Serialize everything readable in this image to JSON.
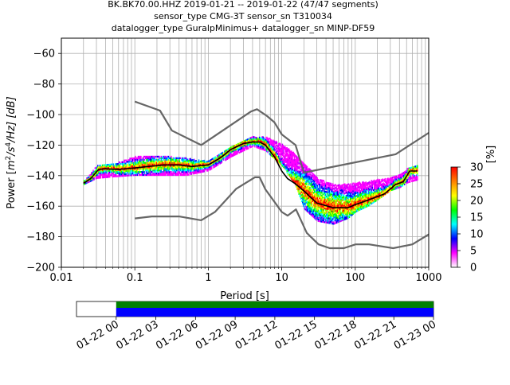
{
  "title_lines": [
    "BK.BK70.00.HHZ   2019-01-21 -- 2019-01-22  (47/47 segments)",
    "sensor_type CMG-3T sensor_sn T310034",
    "datalogger_type GuralpMinimus+ datalogger_sn MINP-DF59"
  ],
  "colorbar": {
    "label": "[%]",
    "ticks": [
      "0",
      "5",
      "10",
      "15",
      "20",
      "25",
      "30"
    ],
    "min": 0,
    "max": 30,
    "stops": [
      "#ffffff",
      "#ff00ff",
      "#0000ff",
      "#00ffff",
      "#00ff00",
      "#ffff00",
      "#ff8000",
      "#ff0000"
    ]
  },
  "timeline": {
    "ticks": [
      "01-22 00",
      "01-22 03",
      "01-22 06",
      "01-22 09",
      "01-22 12",
      "01-22 15",
      "01-22 18",
      "01-22 21",
      "01-23 00"
    ],
    "range_hours": [
      -3,
      24
    ],
    "coverage_hours": [
      0,
      24
    ],
    "colors": {
      "top": "#008000",
      "bottom": "#0000ff"
    }
  },
  "chart_data": {
    "type": "line",
    "title": "BK.BK70.00.HHZ   2019-01-21 -- 2019-01-22  (47/47 segments)",
    "xlabel": "Period [s]",
    "ylabel": "Power [m²/s⁴/Hz] [dB]",
    "ylabel_parts": {
      "pre": "Power [",
      "m": "m",
      "sup2": "2",
      "slash_s": "/s",
      "sup4": "4",
      "rest": "/Hz] [dB]"
    },
    "xscale": "log",
    "xlim": [
      0.01,
      1000
    ],
    "ylim": [
      -200,
      -50
    ],
    "xticks": [
      0.01,
      0.1,
      1,
      10,
      100,
      1000
    ],
    "xtick_labels": [
      "0.01",
      "0.1",
      "1",
      "10",
      "100",
      "1000"
    ],
    "yticks": [
      -200,
      -180,
      -160,
      -140,
      -120,
      -100,
      -80,
      -60
    ],
    "ytick_labels": [
      "−200",
      "−180",
      "−160",
      "−140",
      "−120",
      "−100",
      "−80",
      "−60"
    ],
    "grid": true,
    "series": [
      {
        "role": "noise-model-high",
        "color": "#666666",
        "x": [
          0.1,
          0.22,
          0.32,
          0.8,
          3.8,
          4.6,
          6.3,
          7.9,
          10,
          15.4,
          20,
          354.8,
          1000
        ],
        "y": [
          -91.5,
          -97.4,
          -110.5,
          -120,
          -98,
          -96.5,
          -101,
          -105,
          -113,
          -120,
          -138,
          -126,
          -112
        ]
      },
      {
        "role": "noise-model-low",
        "color": "#666666",
        "x": [
          0.1,
          0.17,
          0.4,
          0.8,
          1.24,
          2.4,
          4.3,
          5,
          6,
          10,
          12,
          15.6,
          21.9,
          31.6,
          45,
          70,
          101,
          154,
          328,
          600,
          1000
        ],
        "y": [
          -168,
          -166.7,
          -166.7,
          -169.2,
          -163.7,
          -148.6,
          -141.1,
          -141.1,
          -149,
          -163.8,
          -166.2,
          -162.1,
          -177.5,
          -185,
          -187.5,
          -187.5,
          -185,
          -185,
          -187.5,
          -185,
          -178.5
        ]
      },
      {
        "role": "mean",
        "color": "#000000",
        "x": [
          0.02,
          0.025,
          0.032,
          0.04,
          0.06,
          0.1,
          0.15,
          0.25,
          0.4,
          0.6,
          1,
          1.5,
          2,
          3,
          4,
          5,
          6,
          8,
          10,
          12,
          15,
          20,
          30,
          50,
          80,
          100,
          150,
          250,
          350,
          450,
          550,
          700
        ],
        "y": [
          -145,
          -142,
          -136,
          -135.5,
          -136,
          -135,
          -134,
          -133,
          -133,
          -134,
          -133,
          -128,
          -123,
          -119,
          -118,
          -118,
          -120,
          -128,
          -137,
          -142,
          -145,
          -150,
          -158,
          -161,
          -161,
          -159,
          -156,
          -152,
          -146,
          -144,
          -137,
          -137
        ]
      }
    ],
    "density_band": {
      "cmap": "PQLX percentage 0–30",
      "x": [
        0.02,
        0.03,
        0.05,
        0.1,
        0.2,
        0.5,
        1,
        2,
        4,
        6,
        10,
        15,
        20,
        30,
        50,
        80,
        100,
        150,
        200,
        300,
        400,
        500,
        700
      ],
      "y_low": [
        -146,
        -142,
        -141,
        -140,
        -140,
        -140,
        -137,
        -128,
        -121,
        -124,
        -134,
        -146,
        -162,
        -170,
        -172,
        -168,
        -164,
        -160,
        -156,
        -150,
        -148,
        -145,
        -143
      ],
      "y_high": [
        -144,
        -134,
        -133,
        -128,
        -127,
        -129,
        -131,
        -121,
        -115,
        -115,
        -120,
        -126,
        -132,
        -142,
        -146,
        -146,
        -145,
        -144,
        -143,
        -142,
        -140,
        -136,
        -134
      ]
    }
  }
}
